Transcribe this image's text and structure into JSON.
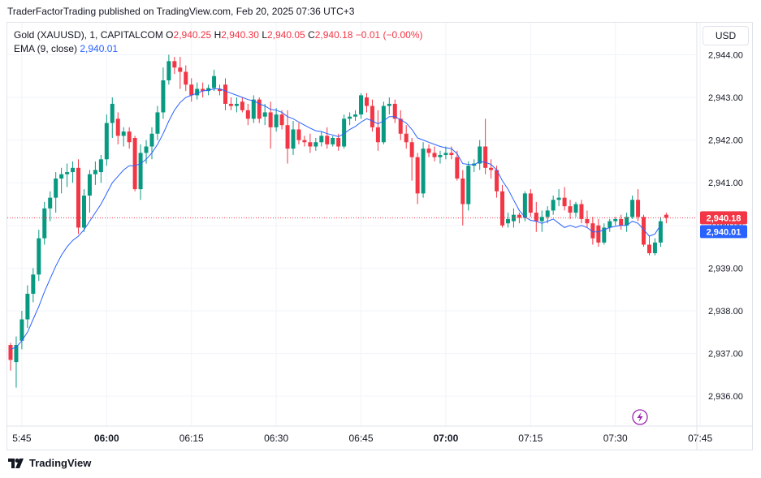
{
  "header": {
    "publisher_text": "TraderFactorTrading published on TradingView.com, Feb 20, 2025 07:36 UTC+3"
  },
  "legend": {
    "symbol": "Gold (XAUUSD), 1, CAPITALCOM",
    "o_label": "O",
    "o_value": "2,940.25",
    "h_label": "H",
    "h_value": "2,940.30",
    "l_label": "L",
    "l_value": "2,940.05",
    "c_label": "C",
    "c_value": "2,940.18",
    "change": "−0.01 (−0.00%)",
    "ema_label": "EMA (9, close)",
    "ema_value": "2,940.01"
  },
  "currency_button": "USD",
  "footer": {
    "brand": "TradingView"
  },
  "colors": {
    "up": "#089981",
    "down": "#f23645",
    "ema": "#2962ff",
    "grid": "#f0f3fa",
    "axis_text": "#131722",
    "price_line": "#f23645"
  },
  "lightning_icon": "lightning-icon",
  "chart_data": {
    "type": "candlestick",
    "interval_minutes": 1,
    "x_start": "05:43",
    "x_ticks": [
      "5:45",
      "06:00",
      "06:15",
      "06:30",
      "06:45",
      "07:00",
      "07:15",
      "07:30",
      "07:45"
    ],
    "x_ticks_bold": [
      "06:00",
      "07:00"
    ],
    "y_ticks": [
      "2,944.00",
      "2,943.00",
      "2,942.00",
      "2,941.00",
      "2,940.00",
      "2,939.00",
      "2,938.00",
      "2,937.00",
      "2,936.00"
    ],
    "ylim": [
      2935.3,
      2944.75
    ],
    "grid": true,
    "last_price_label": "2,940.18",
    "ema_label": "2,940.01",
    "ohlc": [
      [
        2937.2,
        2937.25,
        2936.6,
        2936.85
      ],
      [
        2936.8,
        2937.4,
        2936.2,
        2937.2
      ],
      [
        2937.3,
        2938.0,
        2937.1,
        2937.8
      ],
      [
        2937.8,
        2938.6,
        2937.6,
        2938.4
      ],
      [
        2938.4,
        2939.0,
        2938.2,
        2938.85
      ],
      [
        2938.85,
        2939.9,
        2938.7,
        2939.7
      ],
      [
        2939.7,
        2940.55,
        2939.55,
        2940.4
      ],
      [
        2940.4,
        2940.8,
        2940.1,
        2940.65
      ],
      [
        2940.65,
        2941.25,
        2940.3,
        2941.1
      ],
      [
        2941.1,
        2941.35,
        2940.75,
        2941.2
      ],
      [
        2941.2,
        2941.45,
        2940.9,
        2941.25
      ],
      [
        2941.25,
        2941.5,
        2941.0,
        2941.35
      ],
      [
        2941.35,
        2941.55,
        2939.8,
        2939.95
      ],
      [
        2939.95,
        2940.85,
        2939.85,
        2940.7
      ],
      [
        2940.7,
        2941.3,
        2940.3,
        2941.2
      ],
      [
        2941.2,
        2941.5,
        2940.95,
        2941.3
      ],
      [
        2941.25,
        2941.65,
        2941.0,
        2941.55
      ],
      [
        2941.55,
        2942.6,
        2941.4,
        2942.4
      ],
      [
        2942.4,
        2943.0,
        2942.05,
        2942.85
      ],
      [
        2942.5,
        2942.65,
        2941.9,
        2942.1
      ],
      [
        2942.1,
        2942.3,
        2941.85,
        2942.2
      ],
      [
        2942.2,
        2942.3,
        2941.8,
        2941.95
      ],
      [
        2942.05,
        2942.1,
        2940.8,
        2940.85
      ],
      [
        2940.85,
        2941.9,
        2940.6,
        2941.7
      ],
      [
        2941.7,
        2942.0,
        2941.45,
        2941.85
      ],
      [
        2941.85,
        2942.3,
        2941.55,
        2942.15
      ],
      [
        2942.15,
        2942.8,
        2942.0,
        2942.65
      ],
      [
        2942.65,
        2943.7,
        2942.5,
        2943.4
      ],
      [
        2943.4,
        2944.0,
        2943.3,
        2943.85
      ],
      [
        2943.85,
        2943.95,
        2943.55,
        2943.7
      ],
      [
        2943.7,
        2943.95,
        2943.2,
        2943.6
      ],
      [
        2943.6,
        2943.75,
        2943.15,
        2943.3
      ],
      [
        2943.3,
        2943.45,
        2942.9,
        2943.05
      ],
      [
        2943.05,
        2943.35,
        2942.95,
        2943.2
      ],
      [
        2943.2,
        2943.35,
        2943.0,
        2943.15
      ],
      [
        2943.15,
        2943.3,
        2943.05,
        2943.22
      ],
      [
        2943.22,
        2943.65,
        2943.15,
        2943.5
      ],
      [
        2943.2,
        2943.3,
        2943.05,
        2943.15
      ],
      [
        2943.3,
        2943.45,
        2942.7,
        2942.85
      ],
      [
        2942.85,
        2943.0,
        2942.7,
        2942.8
      ],
      [
        2942.8,
        2943.0,
        2942.65,
        2942.85
      ],
      [
        2942.9,
        2943.0,
        2942.65,
        2942.7
      ],
      [
        2942.7,
        2942.85,
        2942.35,
        2942.5
      ],
      [
        2942.5,
        2943.05,
        2942.4,
        2942.95
      ],
      [
        2942.95,
        2943.0,
        2942.4,
        2942.5
      ],
      [
        2942.55,
        2942.85,
        2942.35,
        2942.65
      ],
      [
        2942.65,
        2942.9,
        2941.8,
        2942.3
      ],
      [
        2942.3,
        2942.75,
        2942.2,
        2942.6
      ],
      [
        2942.6,
        2942.7,
        2942.25,
        2942.35
      ],
      [
        2942.35,
        2942.7,
        2941.45,
        2941.8
      ],
      [
        2941.8,
        2942.45,
        2941.65,
        2942.25
      ],
      [
        2942.25,
        2942.4,
        2941.9,
        2942.0
      ],
      [
        2942.0,
        2942.1,
        2941.85,
        2941.95
      ],
      [
        2941.95,
        2942.15,
        2941.7,
        2941.85
      ],
      [
        2941.85,
        2942.05,
        2941.75,
        2941.95
      ],
      [
        2941.95,
        2942.2,
        2941.85,
        2942.1
      ],
      [
        2942.1,
        2942.3,
        2941.8,
        2941.9
      ],
      [
        2941.9,
        2942.1,
        2941.85,
        2942.05
      ],
      [
        2942.05,
        2942.15,
        2941.75,
        2941.85
      ],
      [
        2941.85,
        2942.6,
        2941.8,
        2942.5
      ],
      [
        2942.5,
        2942.65,
        2942.35,
        2942.55
      ],
      [
        2942.55,
        2942.7,
        2942.45,
        2942.6
      ],
      [
        2942.6,
        2943.1,
        2942.5,
        2943.05
      ],
      [
        2943.0,
        2943.1,
        2942.65,
        2942.8
      ],
      [
        2942.8,
        2942.95,
        2942.2,
        2942.3
      ],
      [
        2942.3,
        2942.7,
        2941.75,
        2941.95
      ],
      [
        2941.95,
        2942.9,
        2941.9,
        2942.8
      ],
      [
        2942.8,
        2943.0,
        2942.6,
        2942.85
      ],
      [
        2942.85,
        2942.95,
        2942.4,
        2942.5
      ],
      [
        2942.5,
        2942.7,
        2942.0,
        2942.15
      ],
      [
        2942.15,
        2942.35,
        2941.8,
        2941.95
      ],
      [
        2941.95,
        2942.05,
        2941.05,
        2941.6
      ],
      [
        2941.6,
        2941.7,
        2940.5,
        2940.75
      ],
      [
        2940.75,
        2941.95,
        2940.65,
        2941.8
      ],
      [
        2941.8,
        2941.9,
        2941.6,
        2941.7
      ],
      [
        2941.7,
        2941.85,
        2941.5,
        2941.6
      ],
      [
        2941.6,
        2941.75,
        2941.45,
        2941.65
      ],
      [
        2941.65,
        2941.85,
        2941.55,
        2941.7
      ],
      [
        2941.7,
        2941.85,
        2941.55,
        2941.65
      ],
      [
        2941.6,
        2941.75,
        2941.05,
        2941.1
      ],
      [
        2941.1,
        2941.3,
        2940.0,
        2940.5
      ],
      [
        2940.5,
        2941.5,
        2940.35,
        2941.4
      ],
      [
        2941.4,
        2941.55,
        2941.25,
        2941.45
      ],
      [
        2941.45,
        2942.0,
        2941.3,
        2941.85
      ],
      [
        2941.85,
        2942.5,
        2941.2,
        2941.35
      ],
      [
        2941.35,
        2941.55,
        2941.1,
        2941.3
      ],
      [
        2941.3,
        2941.4,
        2940.65,
        2940.8
      ],
      [
        2940.8,
        2940.95,
        2939.95,
        2940.0
      ],
      [
        2940.05,
        2940.3,
        2939.95,
        2940.15
      ],
      [
        2940.1,
        2940.4,
        2939.95,
        2940.25
      ],
      [
        2940.25,
        2940.3,
        2940.05,
        2940.18
      ]
    ],
    "ema9": [
      2937.1,
      2937.15,
      2937.3,
      2937.5,
      2937.8,
      2938.1,
      2938.45,
      2938.75,
      2939.05,
      2939.3,
      2939.5,
      2939.65,
      2939.75,
      2939.9,
      2940.1,
      2940.3,
      2940.5,
      2940.75,
      2941.0,
      2941.15,
      2941.3,
      2941.4,
      2941.4,
      2941.45,
      2941.55,
      2941.7,
      2941.9,
      2942.15,
      2942.45,
      2942.7,
      2942.88,
      2943.0,
      2943.05,
      2943.1,
      2943.15,
      2943.17,
      2943.2,
      2943.2,
      2943.15,
      2943.1,
      2943.05,
      2943.0,
      2942.95,
      2942.92,
      2942.85,
      2942.8,
      2942.72,
      2942.7,
      2942.65,
      2942.55,
      2942.5,
      2942.42,
      2942.35,
      2942.28,
      2942.22,
      2942.2,
      2942.15,
      2942.12,
      2942.08,
      2942.15,
      2942.25,
      2942.32,
      2942.42,
      2942.5,
      2942.45,
      2942.38,
      2942.45,
      2942.55,
      2942.55,
      2942.48,
      2942.4,
      2942.25,
      2942.05,
      2942.0,
      2941.95,
      2941.9,
      2941.85,
      2941.82,
      2941.8,
      2941.68,
      2941.45,
      2941.43,
      2941.42,
      2941.5,
      2941.48,
      2941.43,
      2941.3,
      2941.05,
      2940.85,
      2940.6,
      2940.35,
      2940.2,
      2940.12,
      2940.1,
      2940.05,
      2940.1,
      2940.15,
      2940.05,
      2939.95,
      2940.0,
      2939.95,
      2940.0,
      2939.95,
      2939.85,
      2939.85,
      2939.9,
      2939.95,
      2939.98,
      2940.0,
      2940.0,
      2940.1,
      2940.05,
      2939.9,
      2939.75,
      2939.8,
      2940.01
    ],
    "ohlc_tail": [
      [
        2940.18,
        2940.8,
        2940.1,
        2940.75
      ],
      [
        2940.75,
        2940.85,
        2940.2,
        2940.3
      ],
      [
        2940.3,
        2940.55,
        2939.85,
        2940.1
      ],
      [
        2940.1,
        2940.35,
        2939.85,
        2940.2
      ],
      [
        2940.2,
        2940.45,
        2940.05,
        2940.35
      ],
      [
        2940.35,
        2940.7,
        2940.25,
        2940.6
      ],
      [
        2940.6,
        2940.85,
        2940.45,
        2940.65
      ],
      [
        2940.65,
        2940.9,
        2940.35,
        2940.45
      ],
      [
        2940.45,
        2940.6,
        2940.15,
        2940.3
      ],
      [
        2940.3,
        2940.55,
        2940.2,
        2940.5
      ],
      [
        2940.5,
        2940.6,
        2940.05,
        2940.15
      ],
      [
        2940.15,
        2940.35,
        2939.95,
        2940.05
      ],
      [
        2940.05,
        2940.2,
        2939.55,
        2939.7
      ],
      [
        2940.0,
        2940.15,
        2939.5,
        2939.6
      ],
      [
        2939.6,
        2940.05,
        2939.55,
        2939.95
      ],
      [
        2939.95,
        2940.15,
        2939.85,
        2940.1
      ],
      [
        2940.1,
        2940.2,
        2940.0,
        2940.15
      ],
      [
        2940.15,
        2940.25,
        2939.9,
        2940.0
      ],
      [
        2940.0,
        2940.3,
        2939.85,
        2940.2
      ],
      [
        2940.2,
        2940.7,
        2940.15,
        2940.6
      ],
      [
        2940.6,
        2940.85,
        2940.1,
        2940.2
      ],
      [
        2940.2,
        2940.25,
        2939.5,
        2939.55
      ],
      [
        2939.55,
        2939.75,
        2939.3,
        2939.35
      ],
      [
        2939.35,
        2939.7,
        2939.3,
        2939.6
      ],
      [
        2939.6,
        2940.2,
        2939.5,
        2940.1
      ],
      [
        2940.25,
        2940.3,
        2940.05,
        2940.18
      ]
    ]
  }
}
